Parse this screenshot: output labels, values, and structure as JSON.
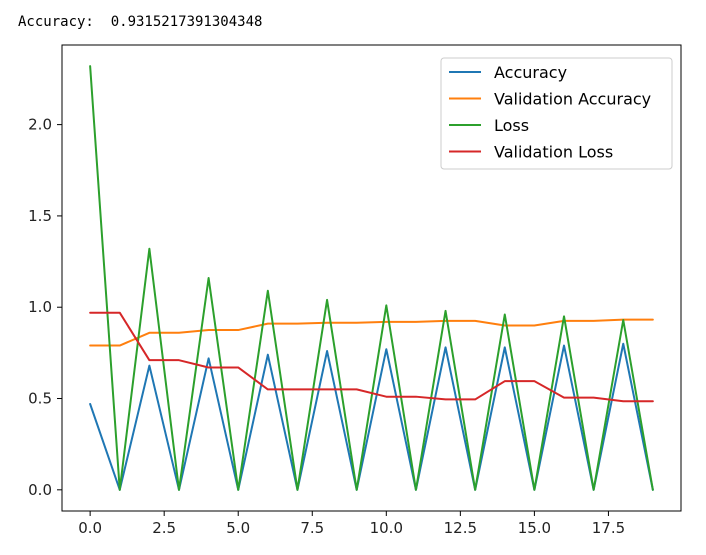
{
  "output": {
    "label": "Accuracy:",
    "value": "0.9315217391304348"
  },
  "chart_data": {
    "type": "line",
    "title": "",
    "xlabel": "",
    "ylabel": "",
    "xlim": [
      -0.95,
      19.95
    ],
    "ylim": [
      -0.116,
      2.436
    ],
    "xticks": [
      0.0,
      2.5,
      5.0,
      7.5,
      10.0,
      12.5,
      15.0,
      17.5
    ],
    "xtick_labels": [
      "0.0",
      "2.5",
      "5.0",
      "7.5",
      "10.0",
      "12.5",
      "15.0",
      "17.5"
    ],
    "yticks": [
      0.0,
      0.5,
      1.0,
      1.5,
      2.0
    ],
    "ytick_labels": [
      "0.0",
      "0.5",
      "1.0",
      "1.5",
      "2.0"
    ],
    "grid": false,
    "legend_position": "top-right",
    "x": [
      0,
      1,
      2,
      3,
      4,
      5,
      6,
      7,
      8,
      9,
      10,
      11,
      12,
      13,
      14,
      15,
      16,
      17,
      18,
      19
    ],
    "series": [
      {
        "name": "Accuracy",
        "color": "#1f77b4",
        "values": [
          0.47,
          0.0,
          0.68,
          0.0,
          0.72,
          0.0,
          0.74,
          0.0,
          0.76,
          0.0,
          0.77,
          0.0,
          0.78,
          0.0,
          0.78,
          0.0,
          0.79,
          0.0,
          0.8,
          0.0
        ]
      },
      {
        "name": "Validation Accuracy",
        "color": "#ff7f0e",
        "values": [
          0.79,
          0.79,
          0.86,
          0.86,
          0.875,
          0.875,
          0.91,
          0.91,
          0.915,
          0.915,
          0.92,
          0.92,
          0.925,
          0.925,
          0.9,
          0.9,
          0.925,
          0.925,
          0.932,
          0.932
        ]
      },
      {
        "name": "Loss",
        "color": "#2ca02c",
        "values": [
          2.32,
          0.0,
          1.32,
          0.0,
          1.16,
          0.0,
          1.09,
          0.0,
          1.04,
          0.0,
          1.01,
          0.0,
          0.98,
          0.0,
          0.96,
          0.0,
          0.95,
          0.0,
          0.93,
          0.0
        ]
      },
      {
        "name": "Validation Loss",
        "color": "#d62728",
        "values": [
          0.97,
          0.97,
          0.71,
          0.71,
          0.67,
          0.67,
          0.55,
          0.55,
          0.55,
          0.55,
          0.51,
          0.51,
          0.495,
          0.495,
          0.595,
          0.595,
          0.505,
          0.505,
          0.485,
          0.485
        ]
      }
    ]
  }
}
